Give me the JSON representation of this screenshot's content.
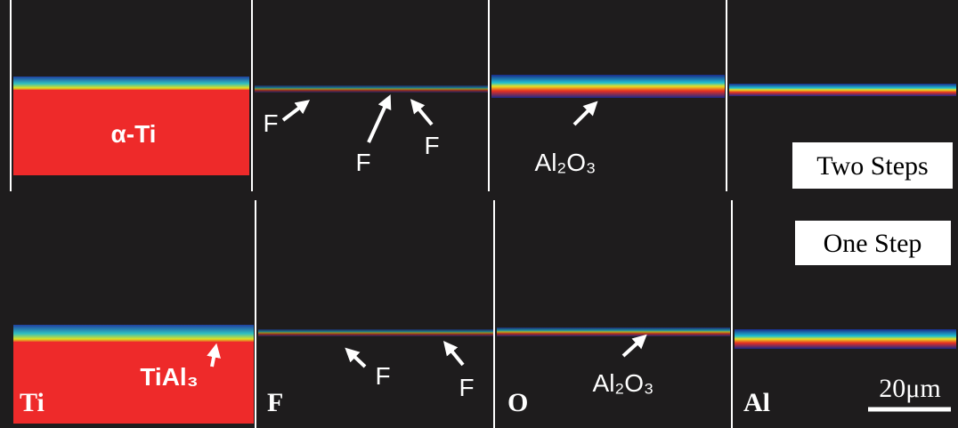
{
  "top_row": {
    "label": "Two Steps",
    "annotations": [
      "α-Ti",
      "F",
      "F",
      "F",
      "Al₂O₃"
    ]
  },
  "bottom_row": {
    "label": "One Step",
    "element_labels": [
      "Ti",
      "F",
      "O",
      "Al"
    ],
    "annotations": [
      "TiAl₃",
      "F",
      "F",
      "Al₂O₃"
    ]
  },
  "scale_bar": "20μm"
}
